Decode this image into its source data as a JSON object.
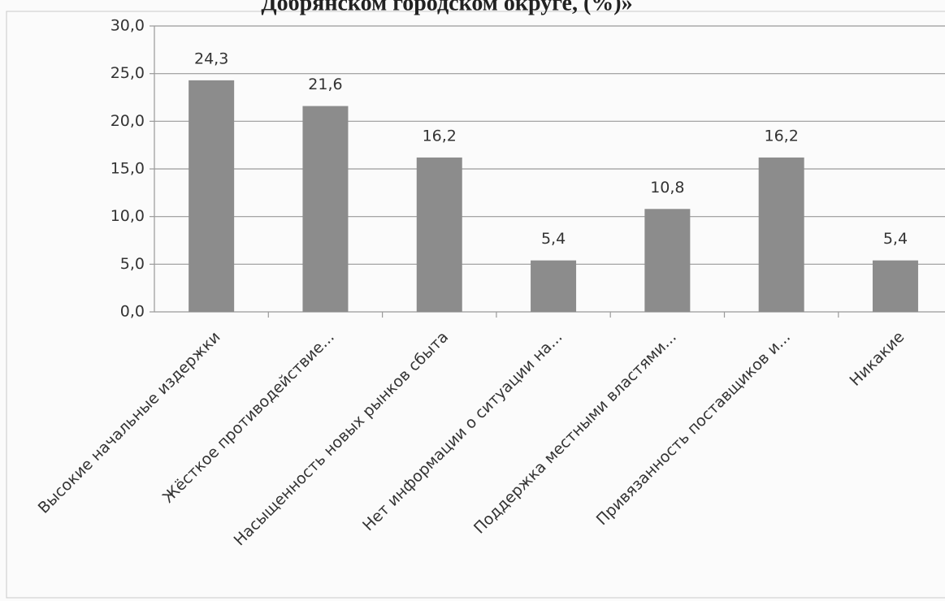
{
  "chart_data": {
    "type": "bar",
    "title": "Добрянском городском округе, (%)»",
    "categories": [
      "Высокие начальные издержки",
      "Жёсткое противодействие...",
      "Насыщенность новых рынков сбыта",
      "Нет информации о ситуации на...",
      "Поддержка местными властями...",
      "Привязанность поставщиков и...",
      "Никакие"
    ],
    "values": [
      24.3,
      21.6,
      16.2,
      5.4,
      10.8,
      16.2,
      5.4
    ],
    "value_labels": [
      "24,3",
      "21,6",
      "16,2",
      "5,4",
      "10,8",
      "16,2",
      "5,4"
    ],
    "color": "#8c8c8c",
    "ylim": [
      0,
      30
    ],
    "yticks": [
      {
        "value": 0,
        "label": "0,0"
      },
      {
        "value": 5,
        "label": "5,0"
      },
      {
        "value": 10,
        "label": "10,0"
      },
      {
        "value": 15,
        "label": "15,0"
      },
      {
        "value": 20,
        "label": "20,0"
      },
      {
        "value": 25,
        "label": "25,0"
      },
      {
        "value": 30,
        "label": "30,0"
      }
    ],
    "grid": true
  }
}
